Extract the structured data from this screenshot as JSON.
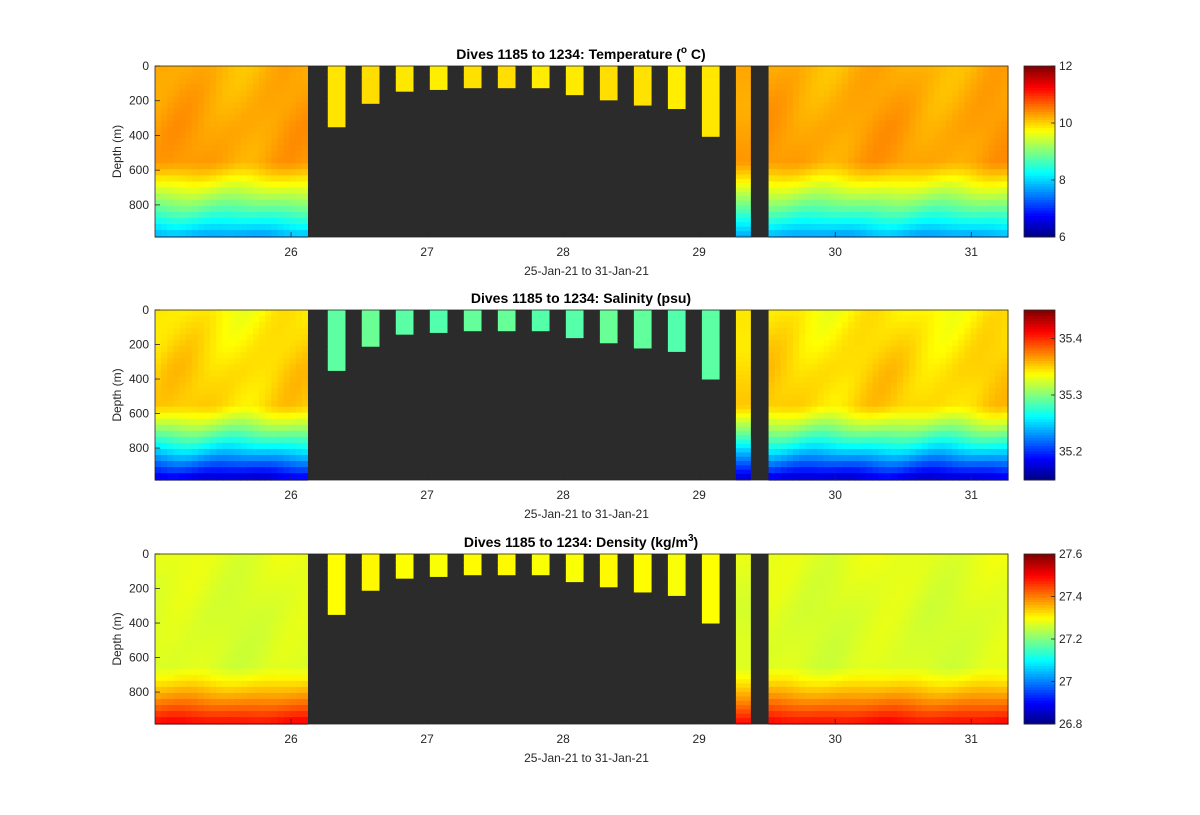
{
  "chart_data": [
    {
      "type": "heatmap",
      "title": "Dives 1185 to 1234: Temperature (",
      "title_sup": "o",
      "title_end": " C)",
      "xlabel": "25-Jan-21 to 31-Jan-21",
      "ylabel": "Depth (m)",
      "xlim": [
        25.0,
        31.27
      ],
      "ylim": [
        0,
        985
      ],
      "y_reversed": true,
      "x_ticks": [
        "26",
        "27",
        "28",
        "29",
        "30",
        "31"
      ],
      "y_ticks": [
        "0",
        "200",
        "400",
        "600",
        "800"
      ],
      "colorbar": {
        "min": 6,
        "max": 12,
        "ticks": [
          "6",
          "8",
          "10",
          "12"
        ],
        "colormap": "jet"
      },
      "background": "#2b2b2b",
      "profile_model": {
        "surface": 10.2,
        "mid": 10.3,
        "deep": 7.7,
        "mid_depth": 350,
        "transition_start": 550,
        "shallow_dive_value": 9.9
      },
      "dive_depths": [
        {
          "x": [
            26.27,
            26.4
          ],
          "max_depth": 350
        },
        {
          "x": [
            26.52,
            26.65
          ],
          "max_depth": 215
        },
        {
          "x": [
            26.77,
            26.9
          ],
          "max_depth": 145
        },
        {
          "x": [
            27.02,
            27.15
          ],
          "max_depth": 135
        },
        {
          "x": [
            27.27,
            27.4
          ],
          "max_depth": 125
        },
        {
          "x": [
            27.52,
            27.65
          ],
          "max_depth": 125
        },
        {
          "x": [
            27.77,
            27.9
          ],
          "max_depth": 125
        },
        {
          "x": [
            28.02,
            28.15
          ],
          "max_depth": 165
        },
        {
          "x": [
            28.27,
            28.4
          ],
          "max_depth": 195
        },
        {
          "x": [
            28.52,
            28.65
          ],
          "max_depth": 225
        },
        {
          "x": [
            28.77,
            28.9
          ],
          "max_depth": 245
        },
        {
          "x": [
            29.02,
            29.15
          ],
          "max_depth": 405
        },
        {
          "x": [
            29.27,
            29.38
          ],
          "max_depth": 985
        }
      ],
      "full_segments": [
        {
          "x": [
            25.0,
            26.12
          ]
        },
        {
          "x": [
            29.51,
            31.27
          ]
        }
      ]
    },
    {
      "type": "heatmap",
      "title": "Dives 1185 to 1234: Salinity (psu)",
      "xlabel": "25-Jan-21 to 31-Jan-21",
      "ylabel": "Depth (m)",
      "xlim": [
        25.0,
        31.27
      ],
      "ylim": [
        0,
        985
      ],
      "y_reversed": true,
      "x_ticks": [
        "26",
        "27",
        "28",
        "29",
        "30",
        "31"
      ],
      "y_ticks": [
        "0",
        "200",
        "400",
        "600",
        "800"
      ],
      "colorbar": {
        "min": 35.15,
        "max": 35.45,
        "tick_values": [
          35.2,
          35.3,
          35.4
        ],
        "ticks": [
          "35.2",
          "35.3",
          "35.4"
        ],
        "colormap": "jet"
      },
      "background": "#2b2b2b",
      "profile_model": {
        "surface": 35.34,
        "mid": 35.35,
        "deep": 35.17,
        "mid_depth": 350,
        "transition_start": 550,
        "shallow_dive_value": 35.29
      },
      "dive_depths": [
        {
          "x": [
            26.27,
            26.4
          ],
          "max_depth": 350
        },
        {
          "x": [
            26.52,
            26.65
          ],
          "max_depth": 210
        },
        {
          "x": [
            26.77,
            26.9
          ],
          "max_depth": 140
        },
        {
          "x": [
            27.02,
            27.15
          ],
          "max_depth": 130
        },
        {
          "x": [
            27.27,
            27.4
          ],
          "max_depth": 120
        },
        {
          "x": [
            27.52,
            27.65
          ],
          "max_depth": 120
        },
        {
          "x": [
            27.77,
            27.9
          ],
          "max_depth": 120
        },
        {
          "x": [
            28.02,
            28.15
          ],
          "max_depth": 160
        },
        {
          "x": [
            28.27,
            28.4
          ],
          "max_depth": 190
        },
        {
          "x": [
            28.52,
            28.65
          ],
          "max_depth": 220
        },
        {
          "x": [
            28.77,
            28.9
          ],
          "max_depth": 240
        },
        {
          "x": [
            29.02,
            29.15
          ],
          "max_depth": 400
        },
        {
          "x": [
            29.27,
            29.38
          ],
          "max_depth": 985
        }
      ],
      "full_segments": [
        {
          "x": [
            25.0,
            26.12
          ]
        },
        {
          "x": [
            29.51,
            31.27
          ]
        }
      ]
    },
    {
      "type": "heatmap",
      "title": "Dives 1185 to 1234: Density (kg/m",
      "title_sup": "3",
      "title_end": ")",
      "xlabel": "25-Jan-21 to 31-Jan-21",
      "ylabel": "Depth (m)",
      "xlim": [
        25.0,
        31.27
      ],
      "ylim": [
        0,
        985
      ],
      "y_reversed": true,
      "x_ticks": [
        "26",
        "27",
        "28",
        "29",
        "30",
        "31"
      ],
      "y_ticks": [
        "0",
        "200",
        "400",
        "600",
        "800"
      ],
      "colorbar": {
        "min": 26.8,
        "max": 27.6,
        "ticks": [
          "26.8",
          "27",
          "27.2",
          "27.4",
          "27.6"
        ],
        "colormap": "jet"
      },
      "background": "#2b2b2b",
      "profile_model": {
        "surface": 27.28,
        "mid": 27.27,
        "deep": 27.5,
        "mid_depth": 350,
        "transition_start": 650,
        "shallow_dive_value": 27.3
      },
      "dive_depths": [
        {
          "x": [
            26.27,
            26.4
          ],
          "max_depth": 350
        },
        {
          "x": [
            26.52,
            26.65
          ],
          "max_depth": 210
        },
        {
          "x": [
            26.77,
            26.9
          ],
          "max_depth": 140
        },
        {
          "x": [
            27.02,
            27.15
          ],
          "max_depth": 130
        },
        {
          "x": [
            27.27,
            27.4
          ],
          "max_depth": 120
        },
        {
          "x": [
            27.52,
            27.65
          ],
          "max_depth": 120
        },
        {
          "x": [
            27.77,
            27.9
          ],
          "max_depth": 120
        },
        {
          "x": [
            28.02,
            28.15
          ],
          "max_depth": 160
        },
        {
          "x": [
            28.27,
            28.4
          ],
          "max_depth": 190
        },
        {
          "x": [
            28.52,
            28.65
          ],
          "max_depth": 220
        },
        {
          "x": [
            28.77,
            28.9
          ],
          "max_depth": 240
        },
        {
          "x": [
            29.02,
            29.15
          ],
          "max_depth": 400
        },
        {
          "x": [
            29.27,
            29.38
          ],
          "max_depth": 985
        }
      ],
      "full_segments": [
        {
          "x": [
            25.0,
            26.12
          ]
        },
        {
          "x": [
            29.51,
            31.27
          ]
        }
      ]
    }
  ]
}
